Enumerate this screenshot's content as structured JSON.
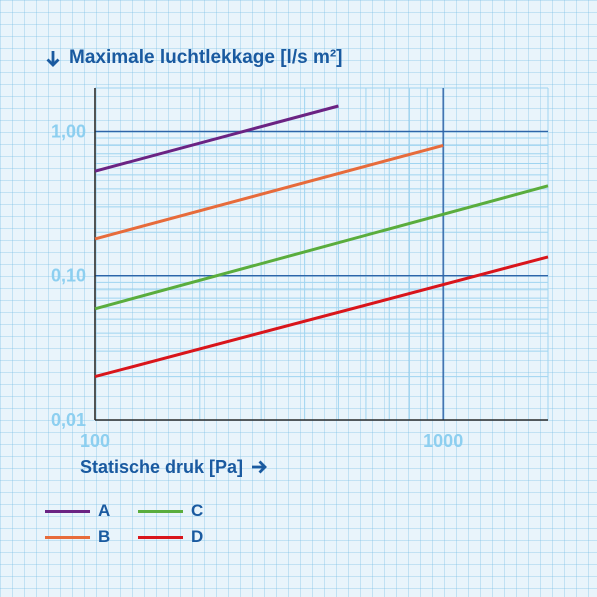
{
  "chart_data": {
    "type": "line",
    "xlabel": "Statische druk [Pa]",
    "ylabel": "Maximale luchtlekkage [l/s m²]",
    "xscale": "log",
    "yscale": "log",
    "xlim": [
      100,
      2000
    ],
    "ylim": [
      0.01,
      2
    ],
    "xticks": [
      {
        "value": 100,
        "label": "100"
      },
      {
        "value": 1000,
        "label": "1000"
      }
    ],
    "yticks": [
      {
        "value": 0.01,
        "label": "0,01"
      },
      {
        "value": 0.1,
        "label": "0,10"
      },
      {
        "value": 1,
        "label": "1,00"
      }
    ],
    "grid": true,
    "legend_position": "bottom-left",
    "series": [
      {
        "name": "A",
        "color": "#6b2383",
        "x": [
          100,
          500
        ],
        "y": [
          0.53,
          1.5
        ]
      },
      {
        "name": "B",
        "color": "#e76b3b",
        "x": [
          100,
          1000
        ],
        "y": [
          0.18,
          0.8
        ]
      },
      {
        "name": "C",
        "color": "#5aad3d",
        "x": [
          100,
          2000
        ],
        "y": [
          0.059,
          0.42
        ]
      },
      {
        "name": "D",
        "color": "#d9151b",
        "x": [
          100,
          2000
        ],
        "y": [
          0.02,
          0.135
        ]
      }
    ]
  },
  "icons": {
    "ylabel_arrow": "arrow-down-icon",
    "xlabel_arrow": "arrow-right-icon"
  },
  "colors": {
    "axis_title": "#1a5aa0",
    "tick_label": "#8dcff0",
    "major_grid": "#2e64a8",
    "minor_grid": "#9fd4f0",
    "axis_line": "#2b2b2b",
    "background": "#e9f4fb"
  }
}
